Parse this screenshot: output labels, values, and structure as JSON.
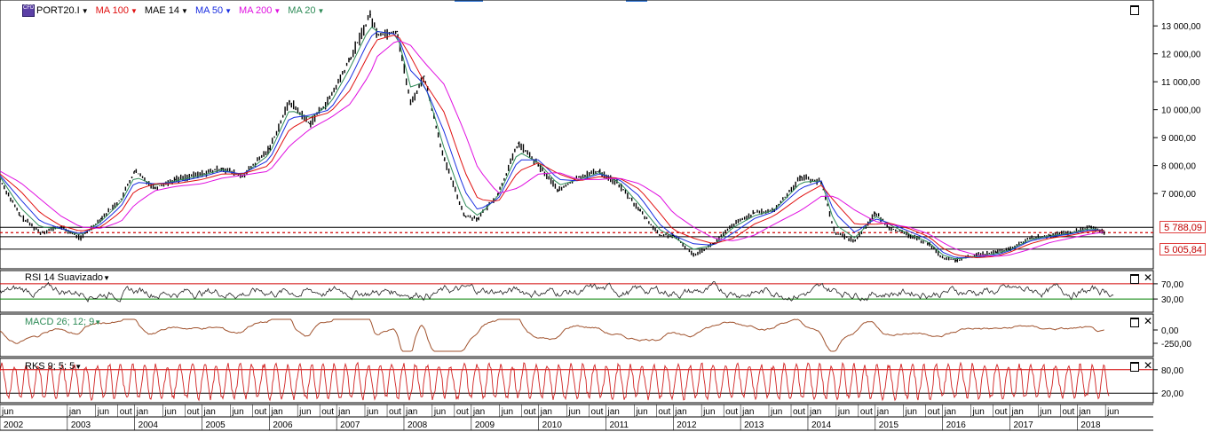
{
  "legend": {
    "symbol": "PORT20.I",
    "symbol_icon": "cfd-icon",
    "indicators": [
      {
        "label": "MA 100",
        "color": "#e01010"
      },
      {
        "label": "MAE 14",
        "color": "#000000"
      },
      {
        "label": "MA 50",
        "color": "#1a2ee0"
      },
      {
        "label": "MA 200",
        "color": "#e010e0"
      },
      {
        "label": "MA 20",
        "color": "#2e8b57"
      }
    ]
  },
  "price_axis": {
    "ticks": [
      "13 000,00",
      "12 000,00",
      "11 000,00",
      "10 000,00",
      "9 000,00",
      "8 000,00",
      "7 000,00"
    ],
    "tick_values": [
      13000,
      12000,
      11000,
      10000,
      9000,
      8000,
      7000
    ],
    "tags": [
      {
        "label": "5 788,09",
        "value": 5788.09
      },
      {
        "label": "5 005,84",
        "value": 5005.84
      }
    ]
  },
  "rsi": {
    "label": "RSI 14 Suavizado",
    "levels": [
      "70,00",
      "30,00"
    ],
    "level_values": [
      70,
      30
    ]
  },
  "macd": {
    "label": "MACD 26; 12; 9",
    "levels": [
      "0,00",
      "-250,00"
    ],
    "level_values": [
      0,
      -250
    ]
  },
  "rks": {
    "label": "RKS 9; 5; 5",
    "levels": [
      "80,00",
      "20,00"
    ],
    "level_values": [
      80,
      20
    ]
  },
  "time_axis": {
    "month_labels": [
      "jun",
      "jan",
      "jun",
      "out",
      "jan",
      "jun",
      "out",
      "jan",
      "jun",
      "out",
      "jan",
      "jun",
      "out",
      "jan",
      "jun",
      "out",
      "jan",
      "jun",
      "out",
      "jan",
      "jun",
      "out",
      "jan",
      "jun",
      "out",
      "jan",
      "jun",
      "out",
      "jan",
      "jun",
      "out",
      "jan",
      "jun",
      "out",
      "jan",
      "jun",
      "out",
      "jan",
      "jun",
      "out",
      "jan",
      "jun",
      "out",
      "jan",
      "jun",
      "out",
      "jan",
      "jun"
    ],
    "years": [
      "2002",
      "2003",
      "2004",
      "2005",
      "2006",
      "2007",
      "2008",
      "2009",
      "2010",
      "2011",
      "2012",
      "2013",
      "2014",
      "2015",
      "2016",
      "2017",
      "2018"
    ]
  },
  "chart_data": {
    "type": "line",
    "title": "PORT20.I",
    "x": [
      2002.0,
      2002.3,
      2002.6,
      2002.9,
      2003.2,
      2003.5,
      2003.8,
      2004.0,
      2004.3,
      2004.6,
      2005.0,
      2005.3,
      2005.6,
      2006.0,
      2006.3,
      2006.6,
      2006.9,
      2007.2,
      2007.5,
      2007.6,
      2007.9,
      2008.1,
      2008.3,
      2008.6,
      2008.9,
      2009.1,
      2009.4,
      2009.7,
      2010.0,
      2010.3,
      2010.6,
      2010.9,
      2011.2,
      2011.5,
      2011.8,
      2012.0,
      2012.3,
      2012.6,
      2012.9,
      2013.2,
      2013.5,
      2013.9,
      2014.2,
      2014.4,
      2014.7,
      2015.0,
      2015.2,
      2015.5,
      2015.8,
      2016.0,
      2016.2,
      2016.5,
      2016.8,
      2017.0,
      2017.3,
      2017.6,
      2017.9,
      2018.2,
      2018.4
    ],
    "series": [
      {
        "name": "PORT20.I",
        "values": [
          7500,
          6200,
          5600,
          5800,
          5400,
          6100,
          6800,
          7800,
          7200,
          7500,
          7700,
          7900,
          7600,
          8600,
          10300,
          9500,
          10400,
          11800,
          13400,
          12700,
          12800,
          10200,
          11200,
          8200,
          6200,
          6100,
          7000,
          8800,
          8000,
          7100,
          7600,
          7800,
          7300,
          6400,
          5500,
          5500,
          4800,
          5200,
          5900,
          6300,
          6400,
          7600,
          7400,
          5600,
          5300,
          6300,
          5800,
          5500,
          5200,
          4700,
          4600,
          4800,
          4900,
          5000,
          5400,
          5500,
          5600,
          5800,
          5600
        ]
      },
      {
        "name": "MA 20",
        "values": [
          7600,
          6500,
          5800,
          5750,
          5500,
          6000,
          6700,
          7600,
          7300,
          7450,
          7650,
          7850,
          7650,
          8400,
          10000,
          9700,
          10200,
          11500,
          13000,
          12800,
          12700,
          10800,
          11000,
          8600,
          6600,
          6200,
          6900,
          8500,
          8100,
          7300,
          7500,
          7750,
          7400,
          6600,
          5700,
          5450,
          5000,
          5150,
          5800,
          6200,
          6400,
          7400,
          7450,
          5900,
          5400,
          6200,
          5900,
          5550,
          5250,
          4800,
          4650,
          4750,
          4850,
          4980,
          5350,
          5480,
          5580,
          5750,
          5650
        ]
      },
      {
        "name": "MA 50",
        "values": [
          7650,
          6800,
          6000,
          5750,
          5550,
          5900,
          6550,
          7400,
          7350,
          7400,
          7600,
          7800,
          7700,
          8200,
          9700,
          9800,
          10000,
          11100,
          12600,
          12800,
          12700,
          11400,
          10900,
          9200,
          7100,
          6400,
          6800,
          8200,
          8200,
          7500,
          7450,
          7700,
          7500,
          6900,
          5900,
          5500,
          5200,
          5150,
          5600,
          6100,
          6350,
          7200,
          7450,
          6300,
          5600,
          6100,
          5950,
          5650,
          5350,
          4900,
          4700,
          4720,
          4800,
          4950,
          5300,
          5450,
          5550,
          5700,
          5680
        ]
      },
      {
        "name": "MA 100",
        "values": [
          7700,
          7100,
          6300,
          5850,
          5650,
          5800,
          6350,
          7100,
          7350,
          7350,
          7500,
          7700,
          7700,
          8000,
          9300,
          9700,
          9900,
          10700,
          12100,
          12500,
          12700,
          11900,
          11000,
          9900,
          7800,
          6800,
          6700,
          7800,
          8100,
          7700,
          7450,
          7600,
          7550,
          7150,
          6300,
          5700,
          5400,
          5200,
          5400,
          5900,
          6200,
          6900,
          7300,
          6700,
          5900,
          5900,
          5950,
          5750,
          5450,
          5050,
          4800,
          4700,
          4750,
          4900,
          5200,
          5400,
          5500,
          5650,
          5680
        ]
      },
      {
        "name": "MA 200",
        "values": [
          7800,
          7400,
          6800,
          6200,
          5800,
          5750,
          6000,
          6600,
          7100,
          7250,
          7350,
          7550,
          7650,
          7800,
          8700,
          9300,
          9700,
          10200,
          11300,
          11900,
          12500,
          12300,
          11700,
          10900,
          9200,
          7900,
          7000,
          7200,
          7700,
          7750,
          7500,
          7500,
          7550,
          7350,
          6900,
          6300,
          5800,
          5400,
          5300,
          5500,
          5900,
          6400,
          6900,
          6900,
          6400,
          6000,
          5900,
          5800,
          5550,
          5250,
          5000,
          4800,
          4750,
          4800,
          5000,
          5250,
          5400,
          5550,
          5620
        ]
      }
    ],
    "horizontal_lines": [
      5788.09,
      5005.84
    ],
    "ylim": [
      4400,
      13800
    ],
    "xlim": [
      2002.0,
      2018.55
    ]
  }
}
